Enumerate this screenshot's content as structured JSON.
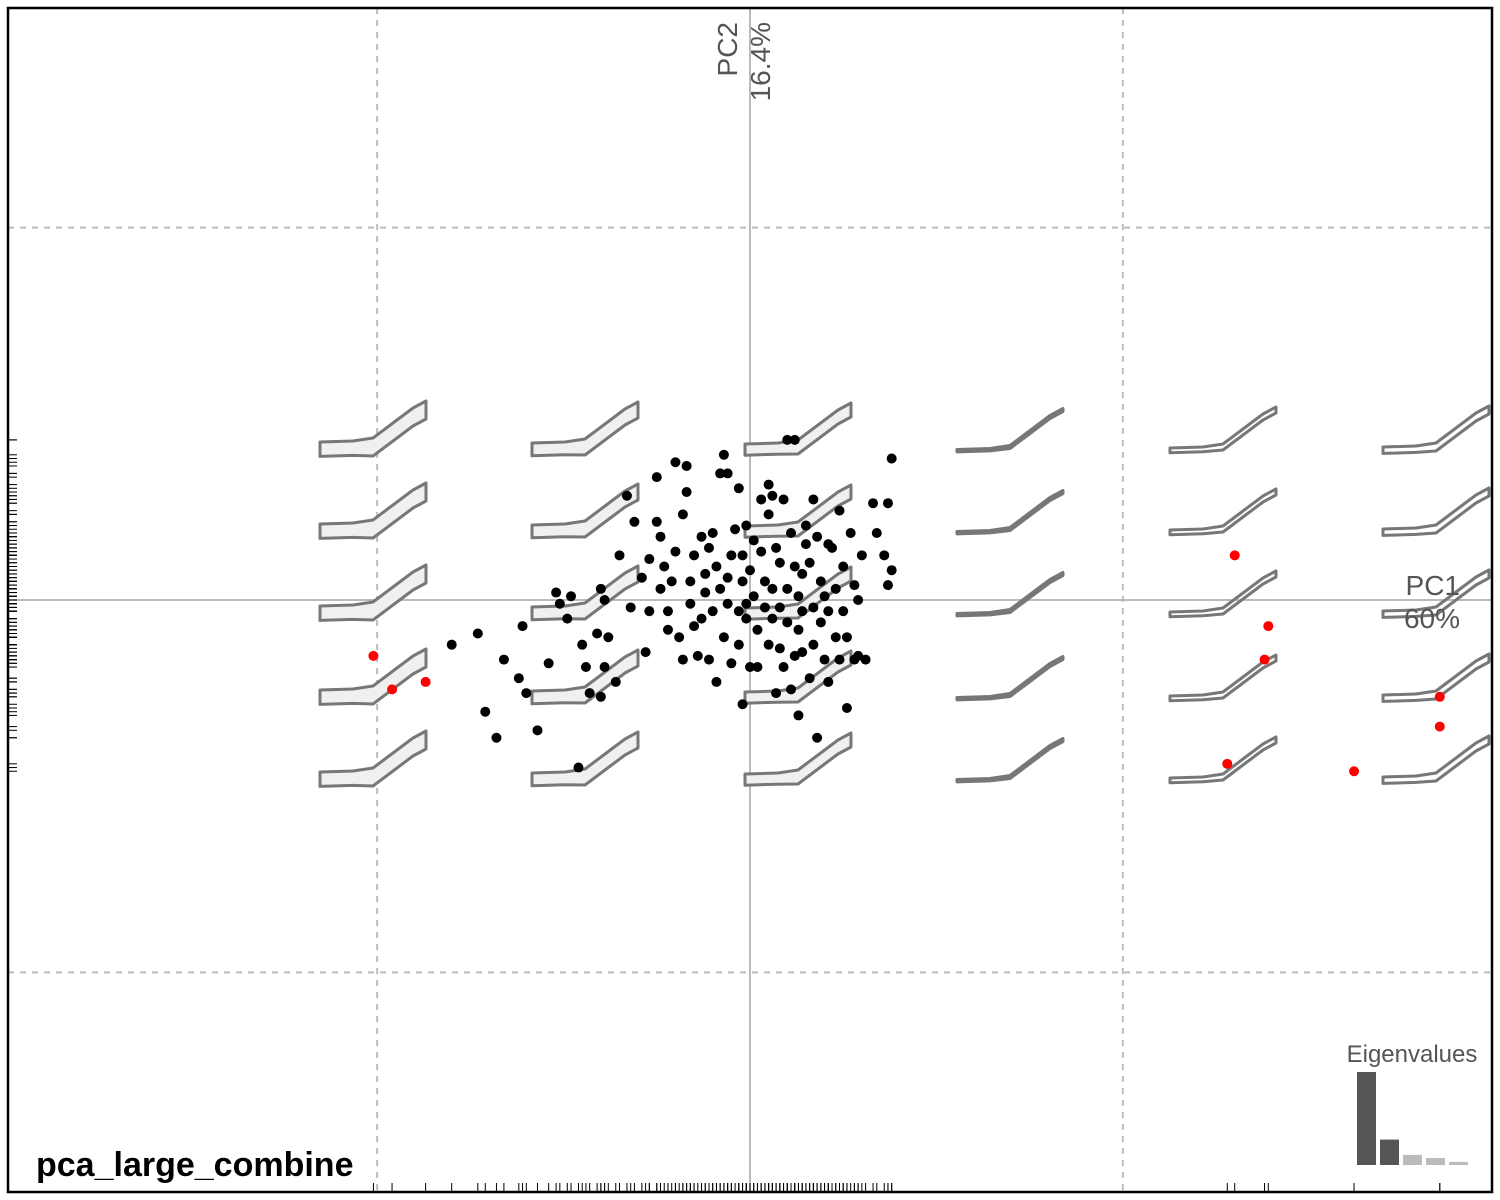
{
  "chart_data": {
    "type": "scatter",
    "title": "pca_large_combine",
    "xlabel": "PC1",
    "xlabel_variance": "60%",
    "ylabel": "PC2",
    "ylabel_variance": "16.4%",
    "xlim": [
      -0.199,
      0.199
    ],
    "ylim": [
      -0.159,
      0.159
    ],
    "xticks": [
      -0.1,
      0,
      0.1
    ],
    "yticks": [
      -0.1,
      0,
      0.1
    ],
    "grid": true,
    "rug": true,
    "series": [
      {
        "color": "#000000",
        "x": [
          -0.08,
          -0.073,
          -0.066,
          -0.061,
          -0.062,
          -0.06,
          -0.071,
          -0.068,
          -0.057,
          -0.054,
          -0.052,
          -0.051,
          -0.048,
          -0.049,
          -0.046,
          -0.045,
          -0.044,
          -0.043,
          -0.041,
          -0.04,
          -0.039,
          -0.038,
          -0.039,
          -0.04,
          -0.036,
          -0.035,
          -0.033,
          -0.031,
          -0.032,
          -0.029,
          -0.028,
          -0.027,
          -0.027,
          -0.025,
          -0.025,
          -0.024,
          -0.024,
          -0.023,
          -0.022,
          -0.022,
          -0.021,
          -0.02,
          -0.02,
          -0.019,
          -0.018,
          -0.018,
          -0.017,
          -0.017,
          -0.016,
          -0.016,
          -0.015,
          -0.015,
          -0.014,
          -0.013,
          -0.013,
          -0.012,
          -0.012,
          -0.011,
          -0.011,
          -0.01,
          -0.01,
          -0.009,
          -0.009,
          -0.008,
          -0.008,
          -0.007,
          -0.007,
          -0.006,
          -0.006,
          -0.006,
          -0.005,
          -0.005,
          -0.004,
          -0.003,
          -0.003,
          -0.003,
          -0.002,
          -0.002,
          -0.002,
          -0.001,
          -0.001,
          -0.001,
          0.0,
          0.0,
          0.001,
          0.001,
          0.002,
          0.002,
          0.003,
          0.003,
          0.004,
          0.004,
          0.005,
          0.005,
          0.005,
          0.006,
          0.006,
          0.006,
          0.007,
          0.007,
          0.008,
          0.008,
          0.008,
          0.009,
          0.009,
          0.01,
          0.01,
          0.01,
          0.011,
          0.011,
          0.012,
          0.012,
          0.012,
          0.013,
          0.013,
          0.013,
          0.014,
          0.014,
          0.014,
          0.015,
          0.015,
          0.016,
          0.016,
          0.017,
          0.017,
          0.017,
          0.018,
          0.018,
          0.019,
          0.019,
          0.02,
          0.02,
          0.021,
          0.021,
          0.021,
          0.022,
          0.023,
          0.023,
          0.024,
          0.024,
          0.025,
          0.025,
          0.026,
          0.026,
          0.027,
          0.028,
          0.028,
          0.029,
          0.029,
          0.03,
          0.031,
          0.033,
          0.034,
          0.036,
          0.037,
          0.038,
          0.038,
          0.037
        ],
        "y": [
          -0.012,
          -0.009,
          -0.016,
          -0.007,
          -0.021,
          -0.025,
          -0.03,
          -0.037,
          -0.035,
          -0.017,
          0.002,
          -0.001,
          0.001,
          -0.005,
          -0.045,
          -0.012,
          -0.018,
          -0.025,
          -0.009,
          0.003,
          0.0,
          -0.01,
          -0.018,
          -0.026,
          -0.022,
          0.012,
          0.028,
          0.021,
          -0.002,
          0.006,
          -0.014,
          0.011,
          -0.003,
          0.033,
          0.021,
          0.003,
          0.017,
          0.009,
          -0.008,
          -0.003,
          0.005,
          0.037,
          0.013,
          -0.01,
          -0.016,
          0.023,
          0.036,
          0.029,
          -0.001,
          0.005,
          0.012,
          -0.007,
          -0.015,
          -0.005,
          0.017,
          0.007,
          0.002,
          0.014,
          -0.016,
          0.018,
          -0.003,
          -0.022,
          0.009,
          0.034,
          0.003,
          0.039,
          -0.01,
          0.006,
          0.034,
          -0.001,
          0.012,
          -0.017,
          0.019,
          -0.003,
          0.03,
          -0.012,
          0.005,
          -0.028,
          0.012,
          0.02,
          -0.001,
          -0.005,
          -0.018,
          0.008,
          0.016,
          0.001,
          -0.018,
          -0.008,
          0.027,
          0.013,
          0.005,
          -0.002,
          0.023,
          0.031,
          -0.012,
          0.028,
          0.003,
          -0.005,
          -0.025,
          0.014,
          0.01,
          -0.002,
          -0.013,
          0.027,
          -0.018,
          0.043,
          0.003,
          -0.006,
          -0.024,
          0.018,
          0.009,
          0.043,
          -0.015,
          -0.031,
          0.001,
          -0.008,
          0.007,
          -0.003,
          -0.014,
          0.015,
          0.02,
          -0.021,
          0.01,
          -0.012,
          -0.002,
          0.027,
          0.017,
          -0.037,
          0.005,
          -0.006,
          -0.016,
          0.001,
          0.015,
          -0.022,
          -0.003,
          0.014,
          -0.01,
          0.003,
          0.024,
          -0.016,
          -0.003,
          0.009,
          -0.029,
          -0.01,
          0.018,
          -0.016,
          0.004,
          0.0,
          -0.015,
          0.012,
          -0.016,
          0.026,
          0.018,
          0.012,
          0.026,
          0.008,
          0.038,
          0.004
        ]
      },
      {
        "color": "#ff0000",
        "x": [
          -0.101,
          -0.096,
          -0.087,
          0.13,
          0.139,
          0.138,
          0.185,
          0.185,
          0.128,
          0.162
        ],
        "y": [
          -0.015,
          -0.024,
          -0.022,
          0.012,
          -0.007,
          -0.016,
          -0.026,
          -0.034,
          -0.044,
          -0.046
        ]
      }
    ],
    "eigen_title": "Eigenvalues",
    "eigenvalues": [
      60,
      16.4,
      6.5,
      4.5,
      2
    ],
    "eigen_colors": [
      "#555555",
      "#555555",
      "#bbbbbb",
      "#bbbbbb",
      "#bbbbbb"
    ]
  }
}
